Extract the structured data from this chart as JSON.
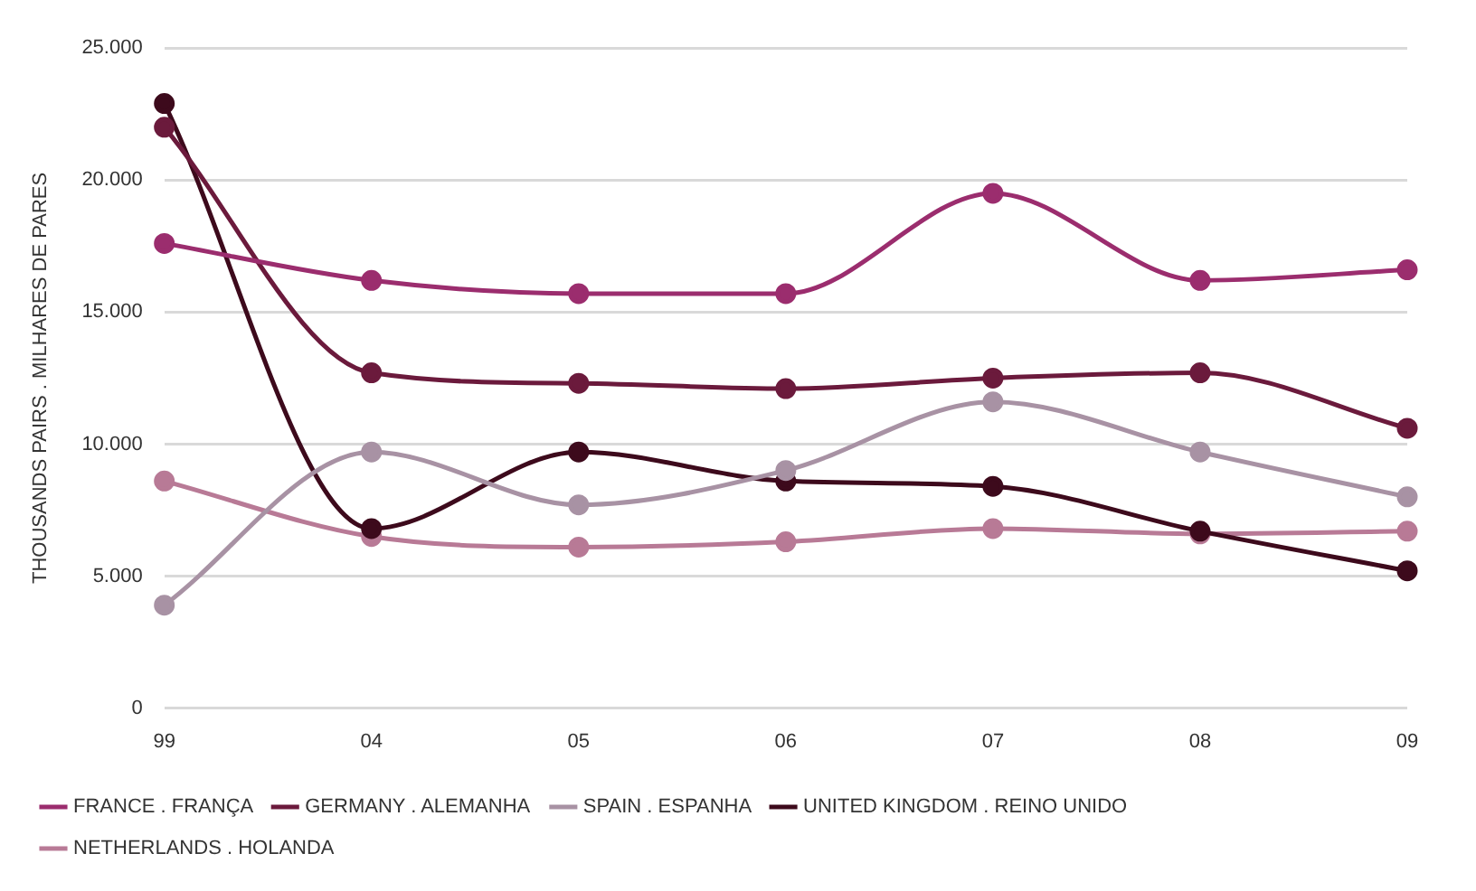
{
  "chart_data": {
    "type": "line",
    "ylabel": "THOUSANDS PAIRS . MILHARES DE PARES",
    "categories": [
      "99",
      "04",
      "05",
      "06",
      "07",
      "08",
      "09"
    ],
    "series": [
      {
        "name": "FRANCE . FRANÇA",
        "color": "#9b2d6e",
        "values": [
          17600,
          16200,
          15700,
          15700,
          19500,
          16200,
          16600
        ]
      },
      {
        "name": "GERMANY . ALEMANHA",
        "color": "#6b1a3c",
        "values": [
          22000,
          12700,
          12300,
          12100,
          12500,
          12700,
          10600
        ]
      },
      {
        "name": "SPAIN . ESPANHA",
        "color": "#a892a4",
        "values": [
          3900,
          9700,
          7700,
          9000,
          11600,
          9700,
          8000
        ]
      },
      {
        "name": "UNITED KINGDOM . REINO UNIDO",
        "color": "#3d0a1c",
        "values": [
          22900,
          6800,
          9700,
          8600,
          8400,
          6700,
          5200
        ]
      },
      {
        "name": "NETHERLANDS . HOLANDA",
        "color": "#b87a96",
        "values": [
          8600,
          6500,
          6100,
          6300,
          6800,
          6600,
          6700
        ]
      }
    ],
    "ylim": [
      0,
      25000
    ],
    "yticks": [
      {
        "value": 0,
        "label": "0"
      },
      {
        "value": 5000,
        "label": "5.000"
      },
      {
        "value": 10000,
        "label": "10.000"
      },
      {
        "value": 15000,
        "label": "15.000"
      },
      {
        "value": 20000,
        "label": "20.000"
      },
      {
        "value": 25000,
        "label": "25.000"
      }
    ],
    "grid": "y",
    "legend": "bottom",
    "marker": "circle",
    "line_style": "solid"
  }
}
